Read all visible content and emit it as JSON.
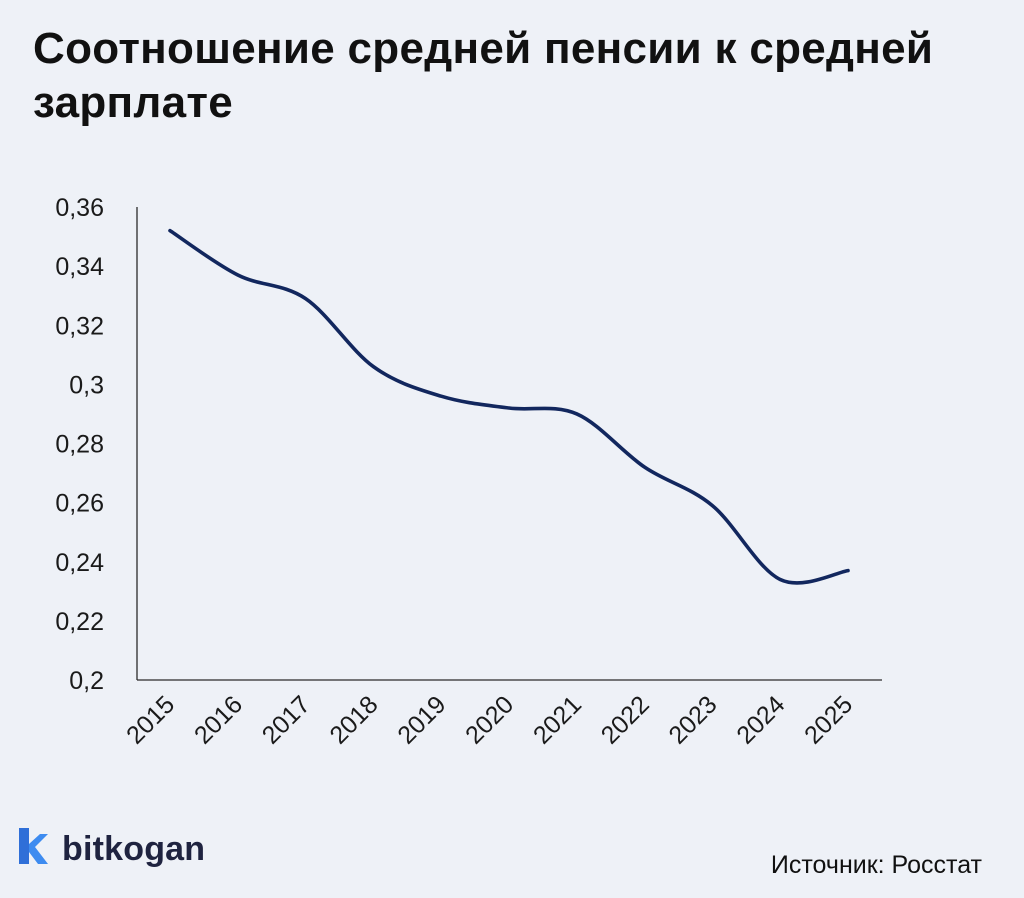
{
  "title": "Соотношение средней пенсии к средней зарплате",
  "brand": "bitkogan",
  "source": "Источник: Росстат",
  "chart_data": {
    "type": "line",
    "title": "Соотношение средней пенсии к средней зарплате",
    "xlabel": "",
    "ylabel": "",
    "categories": [
      "2015",
      "2016",
      "2017",
      "2018",
      "2019",
      "2020",
      "2021",
      "2022",
      "2023",
      "2024",
      "2025"
    ],
    "series": [
      {
        "values": [
          0.352,
          0.337,
          0.329,
          0.306,
          0.296,
          0.292,
          0.29,
          0.272,
          0.259,
          0.234,
          0.237
        ],
        "color": "#12275e"
      }
    ],
    "ylim": [
      0.2,
      0.36
    ],
    "yticks": [
      0.2,
      0.22,
      0.24,
      0.26,
      0.28,
      0.3,
      0.32,
      0.34,
      0.36
    ],
    "ytick_labels": [
      "0,2",
      "0,22",
      "0,24",
      "0,26",
      "0,28",
      "0,3",
      "0,32",
      "0,34",
      "0,36"
    ],
    "grid": false,
    "legend": "none"
  }
}
